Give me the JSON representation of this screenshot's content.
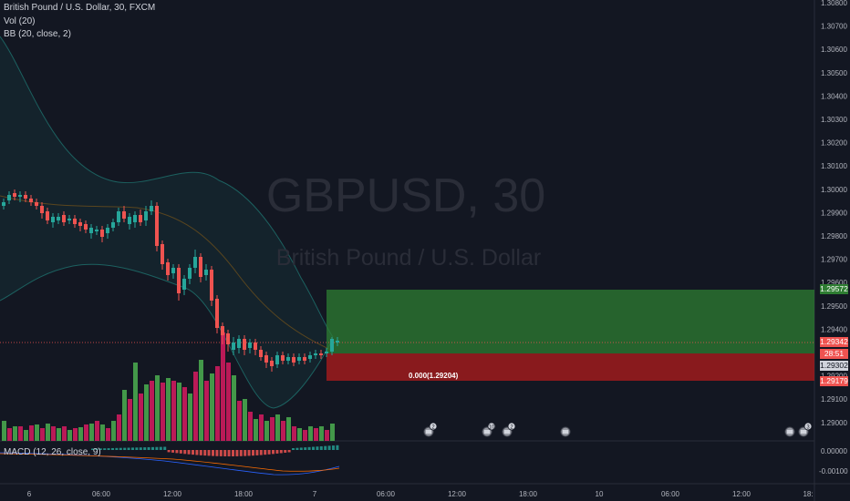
{
  "legend": {
    "symbol_line": "British Pound / U.S. Dollar, 30, FXCM",
    "volume": "Vol (20)",
    "bb": "BB (20, close, 2)",
    "macd": "MACD (12, 26, close, 9)"
  },
  "watermark": {
    "symbol": "GBPUSD, 30",
    "description": "British Pound / U.S. Dollar"
  },
  "price_axis": {
    "ticks": [
      "1.30800",
      "1.30700",
      "1.30600",
      "1.30500",
      "1.30400",
      "1.30300",
      "1.30200",
      "1.30100",
      "1.30000",
      "1.29900",
      "1.29800",
      "1.29700",
      "1.29600",
      "1.29500",
      "1.29400",
      "1.29300",
      "1.29200",
      "1.29100",
      "1.29000"
    ],
    "range": [
      1.2885,
      1.3083
    ]
  },
  "macd_axis": {
    "ticks": [
      "0.00000",
      "-0.00100"
    ]
  },
  "time_axis": {
    "labels": [
      "6",
      "06:00",
      "12:00",
      "18:00",
      "7",
      "06:00",
      "12:00",
      "18:00",
      "10",
      "06:00",
      "12:00",
      "18:"
    ]
  },
  "position": {
    "tp_label": "1.29572",
    "current_label": "1.29342",
    "countdown_label": "28:51",
    "entry_label": "1.29302",
    "sl_label": "1.29179",
    "ratio_text": "0.000(1.29204)",
    "tp_price": 1.29572,
    "entry_price": 1.29302,
    "sl_price": 1.29179,
    "current_price": 1.29342
  },
  "events": [
    {
      "badge": "2"
    },
    {
      "badge": "10"
    },
    {
      "badge": "2"
    },
    {
      "badge": ""
    },
    {
      "badge": ""
    },
    {
      "badge": "3"
    }
  ],
  "colors": {
    "background": "#131722",
    "up": "#26a69a",
    "down": "#ef5350",
    "vol_up": "#4caf50",
    "vol_down": "#d81b60",
    "profit_zone": "#2e7d32",
    "loss_zone": "#b71c1c"
  }
}
